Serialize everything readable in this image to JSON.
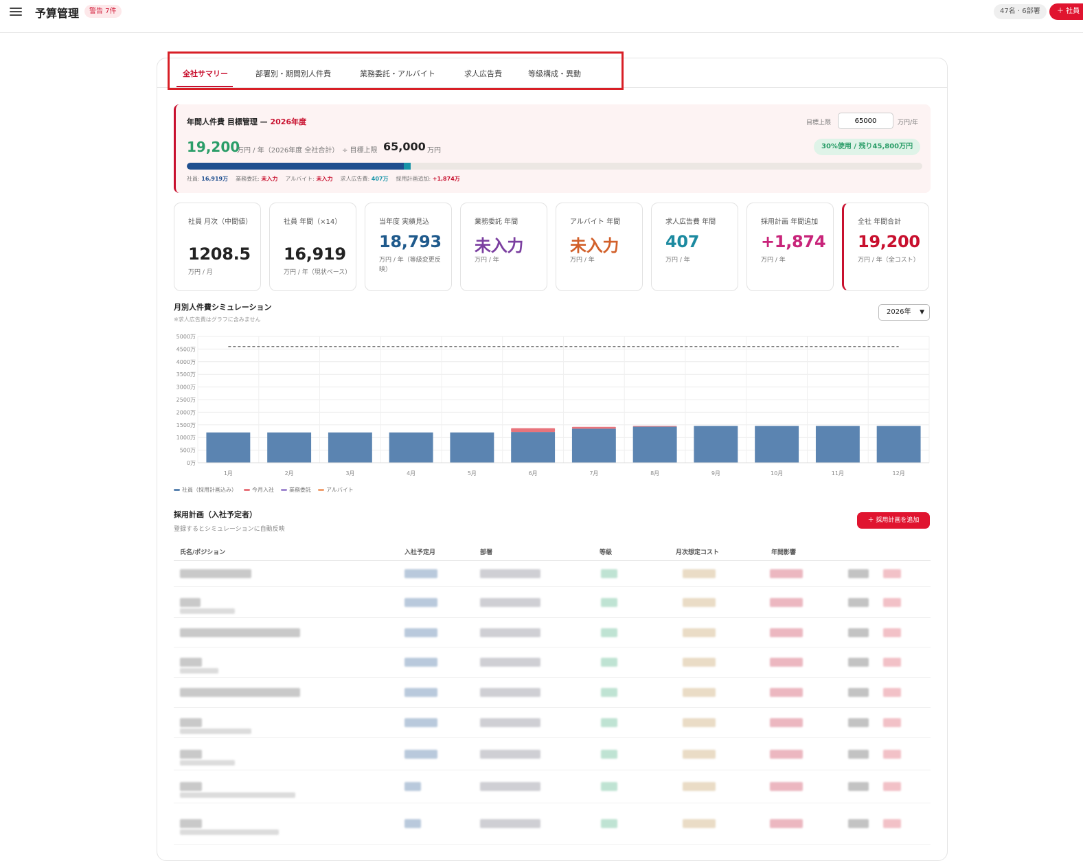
{
  "header": {
    "title": "予算管理",
    "warning_badge": "警告 7件",
    "count_pill": "47名 · 6部署",
    "add_employee_button": "＋ 社員"
  },
  "tabs": [
    {
      "label": "全社サマリー",
      "active": true
    },
    {
      "label": "部署別・期間別人件費",
      "active": false
    },
    {
      "label": "業務委託・アルバイト",
      "active": false
    },
    {
      "label": "求人広告費",
      "active": false
    },
    {
      "label": "等級構成・異動",
      "active": false
    }
  ],
  "goal": {
    "title_prefix": "年間人件費 目標管理 — ",
    "year": "2026年度",
    "target_label": "目標上限",
    "target_input_value": "65000",
    "target_unit": "万円/年",
    "total_value": "19,200",
    "total_sub": "万円 / 年（2026年度 全社合計）",
    "limit_label": "÷ 目標上限",
    "limit_value": "65,000",
    "limit_unit": "万円",
    "usage_pill": "30%使用 / 残り45,800万円",
    "progress_fraction": 0.2954,
    "progress_segment2_fraction": 0.009,
    "breakdown": [
      {
        "label": "社員:",
        "value": "16,919万",
        "color": "#1f4f8f"
      },
      {
        "label": "業務委託:",
        "value": "未入力",
        "color": "#c8102e"
      },
      {
        "label": "アルバイト:",
        "value": "未入力",
        "color": "#c8102e"
      },
      {
        "label": "求人広告費:",
        "value": "407万",
        "color": "#1894a8"
      },
      {
        "label": "採用計画追加:",
        "value": "+1,874万",
        "color": "#c8102e"
      }
    ]
  },
  "kpis": [
    {
      "label": "社員 月次（中間値）",
      "value": "1208.5",
      "unit": "万円 / 月",
      "color": "#222222"
    },
    {
      "label": "社員 年間（×14）",
      "value": "16,919",
      "unit": "万円 / 年（現状ベース）",
      "color": "#222222"
    },
    {
      "label": "当年度 実績見込",
      "value": "18,793",
      "unit": "万円 / 年（等級変更反映）",
      "color": "#1f5a8c"
    },
    {
      "label": "業務委託 年間",
      "value": "未入力",
      "unit": "万円 / 年",
      "color": "#7b3fa0"
    },
    {
      "label": "アルバイト 年間",
      "value": "未入力",
      "unit": "万円 / 年",
      "color": "#d2602a"
    },
    {
      "label": "求人広告費 年間",
      "value": "407",
      "unit": "万円 / 年",
      "color": "#1c8aa0"
    },
    {
      "label": "採用計画 年間追加",
      "value": "+1,874",
      "unit": "万円 / 年",
      "color": "#c8247a"
    },
    {
      "label": "全社 年間合計",
      "value": "19,200",
      "unit": "万円 / 年（全コスト）",
      "color": "#c8102e"
    }
  ],
  "chart_section": {
    "title": "月別人件費シミュレーション",
    "note": "※求人広告費はグラフに含みません",
    "year_select": "2026年"
  },
  "chart_data": {
    "type": "bar",
    "stacked": true,
    "categories": [
      "1月",
      "2月",
      "3月",
      "4月",
      "5月",
      "6月",
      "7月",
      "8月",
      "9月",
      "10月",
      "11月",
      "12月"
    ],
    "series": [
      {
        "name": "社員（採用計画込み）",
        "color": "#5b84b1",
        "values": [
          1200,
          1200,
          1200,
          1200,
          1200,
          1220,
          1350,
          1430,
          1460,
          1460,
          1460,
          1460
        ]
      },
      {
        "name": "今月入社",
        "color": "#e8747c",
        "values": [
          0,
          0,
          0,
          0,
          0,
          150,
          70,
          30,
          0,
          0,
          0,
          0
        ]
      },
      {
        "name": "業務委託",
        "color": "#a18ad0",
        "values": [
          0,
          0,
          0,
          0,
          0,
          0,
          0,
          0,
          0,
          0,
          0,
          0
        ]
      },
      {
        "name": "アルバイト",
        "color": "#f0a070",
        "values": [
          0,
          0,
          0,
          0,
          0,
          0,
          0,
          0,
          0,
          0,
          0,
          0
        ]
      }
    ],
    "target_line": 4600,
    "y_ticks": [
      "0万",
      "500万",
      "1000万",
      "1500万",
      "2000万",
      "2500万",
      "3000万",
      "3500万",
      "4000万",
      "4500万",
      "5000万"
    ],
    "ylim": [
      0,
      5000
    ],
    "grid": true,
    "legend_position": "bottom-left"
  },
  "plan_section": {
    "title": "採用計画（入社予定者）",
    "subtitle": "登録するとシミュレーションに自動反映",
    "add_button": "＋ 採用計画を追加",
    "columns": [
      "氏名/ポジション",
      "入社予定月",
      "部署",
      "等級",
      "月次想定コスト",
      "年間影響"
    ]
  }
}
